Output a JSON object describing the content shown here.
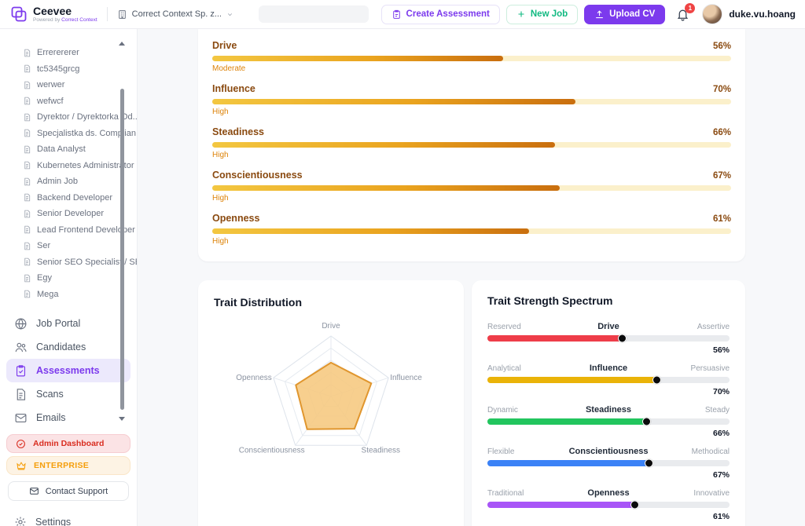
{
  "header": {
    "brand": {
      "name": "Ceevee",
      "tagline_prefix": "Powered by ",
      "tagline_brand": "Correct Context"
    },
    "workspace": {
      "label": "Correct Context Sp. z..."
    },
    "actions": {
      "create_assessment": "Create Assessment",
      "new_job": "New Job",
      "upload_cv": "Upload CV"
    },
    "notifications_count": "1",
    "user": {
      "name": "duke.vu.hoang"
    }
  },
  "sidebar": {
    "jobs": [
      "Errerererer",
      "tc5345grcg",
      "werwer",
      "wefwcf",
      "Dyrektor / Dyrektorka Od...",
      "Specjalistka ds. Complian...",
      "Data Analyst",
      "Kubernetes Administrator",
      "Admin Job",
      "Backend Developer",
      "Senior Developer",
      "Lead Frontend Developer",
      "Ser",
      "Senior SEO Specialist / SE...",
      "Egy",
      "Mega"
    ],
    "nav": [
      {
        "label": "Job Portal"
      },
      {
        "label": "Candidates"
      },
      {
        "label": "Assessments",
        "active": true
      },
      {
        "label": "Scans"
      },
      {
        "label": "Emails"
      }
    ],
    "admin_dashboard": "Admin Dashboard",
    "enterprise": "ENTERPRISE",
    "contact_support": "Contact Support",
    "settings": "Settings"
  },
  "traits": {
    "rows": [
      {
        "name": "Drive",
        "percent": "56%",
        "value": 56,
        "level": "Moderate"
      },
      {
        "name": "Influence",
        "percent": "70%",
        "value": 70,
        "level": "High"
      },
      {
        "name": "Steadiness",
        "percent": "66%",
        "value": 66,
        "level": "High"
      },
      {
        "name": "Conscientiousness",
        "percent": "67%",
        "value": 67,
        "level": "High"
      },
      {
        "name": "Openness",
        "percent": "61%",
        "value": 61,
        "level": "High"
      }
    ]
  },
  "radar": {
    "title": "Trait Distribution"
  },
  "spectrum": {
    "title": "Trait Strength Spectrum",
    "rows": [
      {
        "left": "Reserved",
        "trait": "Drive",
        "right": "Assertive",
        "percent": "56%",
        "value": 56,
        "color": "#ee3d49"
      },
      {
        "left": "Analytical",
        "trait": "Influence",
        "right": "Persuasive",
        "percent": "70%",
        "value": 70,
        "color": "#eab308"
      },
      {
        "left": "Dynamic",
        "trait": "Steadiness",
        "right": "Steady",
        "percent": "66%",
        "value": 66,
        "color": "#22c55e"
      },
      {
        "left": "Flexible",
        "trait": "Conscientiousness",
        "right": "Methodical",
        "percent": "67%",
        "value": 67,
        "color": "#3b82f6"
      },
      {
        "left": "Traditional",
        "trait": "Openness",
        "right": "Innovative",
        "percent": "61%",
        "value": 61,
        "color": "#a855f7"
      }
    ]
  },
  "chart_data": [
    {
      "type": "radar",
      "title": "Trait Distribution",
      "categories": [
        "Drive",
        "Influence",
        "Steadiness",
        "Conscientiousness",
        "Openness"
      ],
      "values": [
        56,
        70,
        66,
        67,
        61
      ],
      "rmax": 100,
      "grid_levels": [
        20,
        40,
        60,
        80,
        100
      ],
      "fill": "#f6c87e",
      "stroke": "#e0962e",
      "grid_color": "#e5eaf0",
      "label_color": "#8b93a1"
    },
    {
      "type": "bar",
      "title": "Trait Strength Spectrum",
      "categories": [
        "Drive",
        "Influence",
        "Steadiness",
        "Conscientiousness",
        "Openness"
      ],
      "values": [
        56,
        70,
        66,
        67,
        61
      ],
      "left_anchors": [
        "Reserved",
        "Analytical",
        "Dynamic",
        "Flexible",
        "Traditional"
      ],
      "right_anchors": [
        "Assertive",
        "Persuasive",
        "Steady",
        "Methodical",
        "Innovative"
      ],
      "colors": [
        "#ee3d49",
        "#eab308",
        "#22c55e",
        "#3b82f6",
        "#a855f7"
      ],
      "xlim": [
        0,
        100
      ]
    }
  ],
  "colors": {
    "accent_purple": "#7c3aed",
    "trait_text": "#8a4a10",
    "trait_level": "#dd8309",
    "trait_track": "#fbf0cb",
    "badge_red": "#ef4444"
  },
  "icons": {
    "logo": "layered-squares",
    "workspace": "building",
    "chevron": "chevron-down",
    "create_assessment": "clipboard",
    "new_job": "plus",
    "upload_cv": "upload-arrow",
    "notifications": "bell",
    "job_item": "document",
    "job_portal": "globe",
    "candidates": "people",
    "assessments": "clipboard-check",
    "scans": "document",
    "emails": "envelope",
    "admin": "check-circle",
    "enterprise": "crown",
    "support": "envelope",
    "settings": "gear"
  }
}
